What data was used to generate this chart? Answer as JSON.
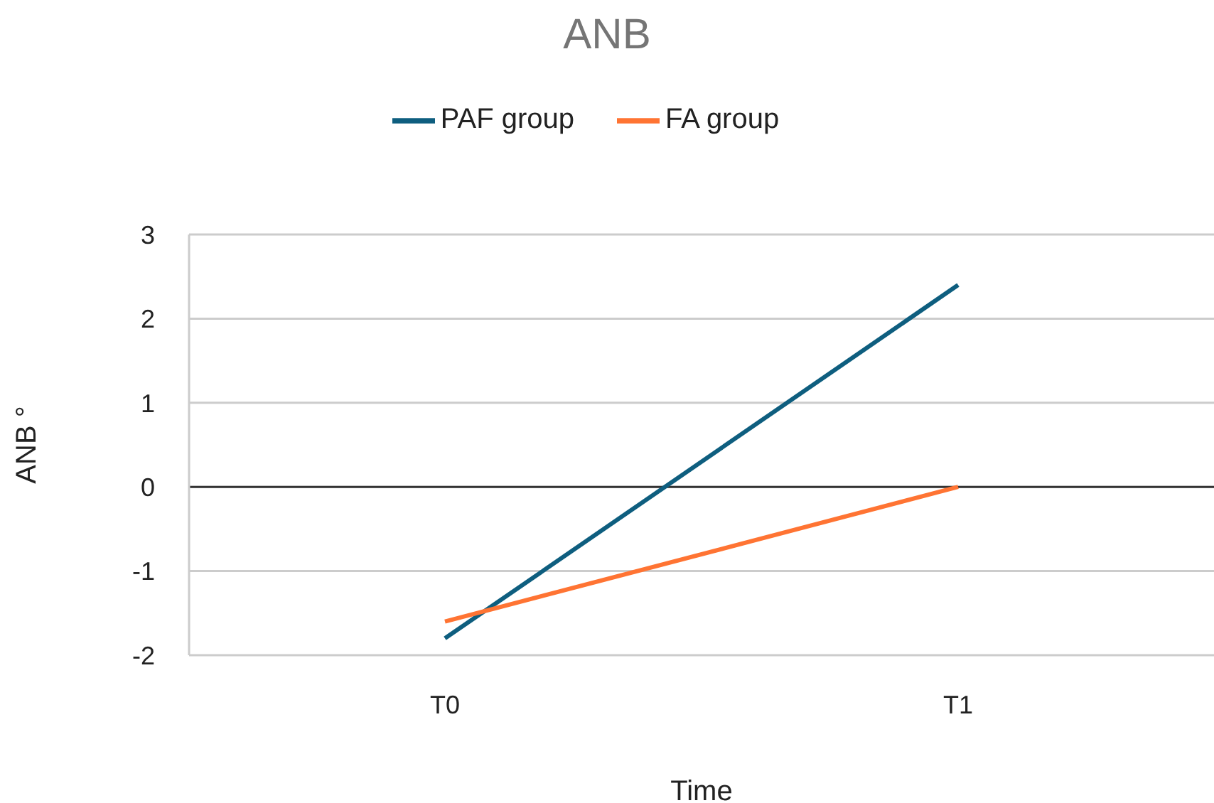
{
  "chart_data": {
    "type": "line",
    "title": "ANB",
    "xlabel": "Time",
    "ylabel": "ANB °",
    "categories": [
      "T0",
      "T1"
    ],
    "series": [
      {
        "name": "PAF group",
        "color": "#0e5e7f",
        "values": [
          -1.8,
          2.4
        ]
      },
      {
        "name": "FA group",
        "color": "#ff7433",
        "values": [
          -1.6,
          0
        ]
      }
    ],
    "ylim": [
      -2,
      3
    ],
    "yticks": [
      -2,
      -1,
      0,
      1,
      2,
      3
    ],
    "grid": "y",
    "legend": "top",
    "marker": "none",
    "line_style": "solid",
    "ref_lines": [
      {
        "axis": "y",
        "value": 0,
        "color": "#333333"
      }
    ]
  }
}
